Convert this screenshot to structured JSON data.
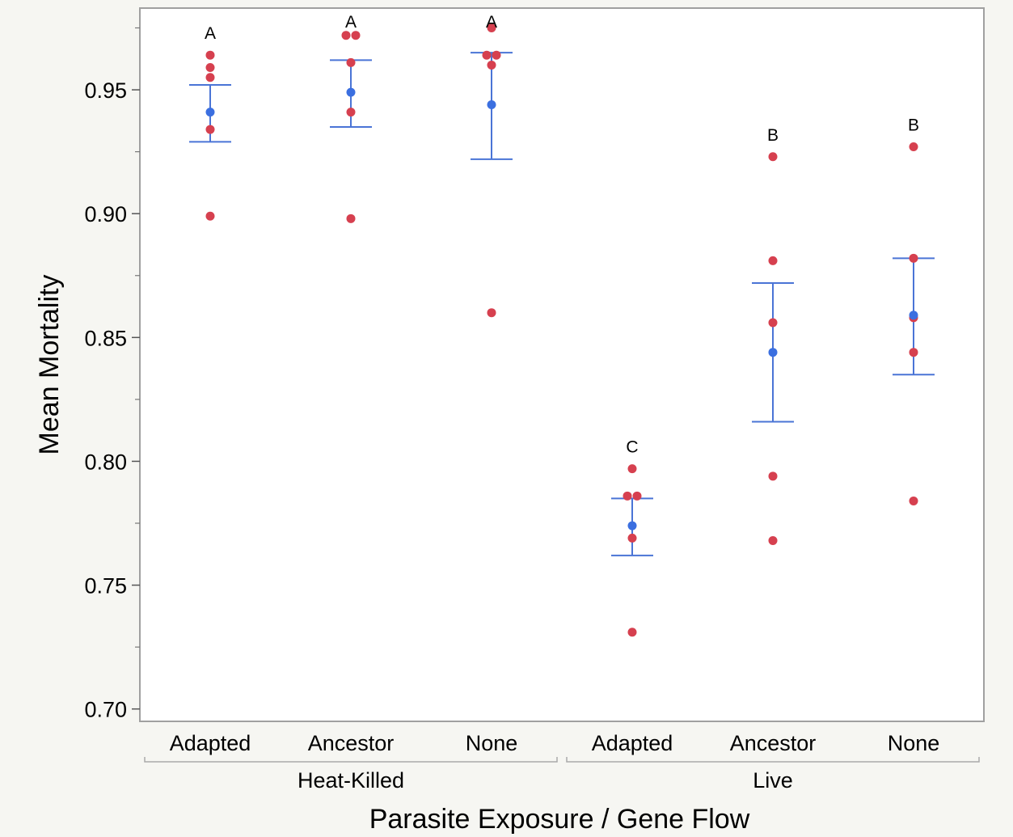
{
  "chart_data": {
    "type": "scatter",
    "title": "",
    "xlabel": "Parasite Exposure / Gene Flow",
    "ylabel": "Mean Mortality",
    "ylim": [
      0.695,
      0.983
    ],
    "yticks": [
      "0.70",
      "0.75",
      "0.80",
      "0.85",
      "0.90",
      "0.95"
    ],
    "grid": false,
    "groups": [
      {
        "label": "Heat-Killed",
        "categories": [
          "Adapted",
          "Ancestor",
          "None"
        ]
      },
      {
        "label": "Live",
        "categories": [
          "Adapted",
          "Ancestor",
          "None"
        ]
      }
    ],
    "colors": {
      "points": "#d6404f",
      "mean": "#3b6fe0",
      "error_bar": "#4a74d6",
      "frame": "#a0a0a0"
    },
    "series": [
      {
        "group": "Heat-Killed",
        "category": "Adapted",
        "letter": "A",
        "points": [
          0.964,
          0.959,
          0.955,
          0.934,
          0.899
        ],
        "mean": 0.941,
        "lower": 0.929,
        "upper": 0.952
      },
      {
        "group": "Heat-Killed",
        "category": "Ancestor",
        "letter": "A",
        "points": [
          0.972,
          0.972,
          0.961,
          0.941,
          0.898
        ],
        "mean": 0.949,
        "lower": 0.935,
        "upper": 0.962
      },
      {
        "group": "Heat-Killed",
        "category": "None",
        "letter": "A",
        "points": [
          0.975,
          0.964,
          0.964,
          0.96,
          0.86
        ],
        "mean": 0.944,
        "lower": 0.922,
        "upper": 0.965
      },
      {
        "group": "Live",
        "category": "Adapted",
        "letter": "C",
        "points": [
          0.797,
          0.786,
          0.786,
          0.769,
          0.731
        ],
        "mean": 0.774,
        "lower": 0.762,
        "upper": 0.785
      },
      {
        "group": "Live",
        "category": "Ancestor",
        "letter": "B",
        "points": [
          0.923,
          0.881,
          0.856,
          0.794,
          0.768
        ],
        "mean": 0.844,
        "lower": 0.816,
        "upper": 0.872
      },
      {
        "group": "Live",
        "category": "None",
        "letter": "B",
        "points": [
          0.927,
          0.882,
          0.858,
          0.844,
          0.784
        ],
        "mean": 0.859,
        "lower": 0.835,
        "upper": 0.882
      }
    ]
  }
}
